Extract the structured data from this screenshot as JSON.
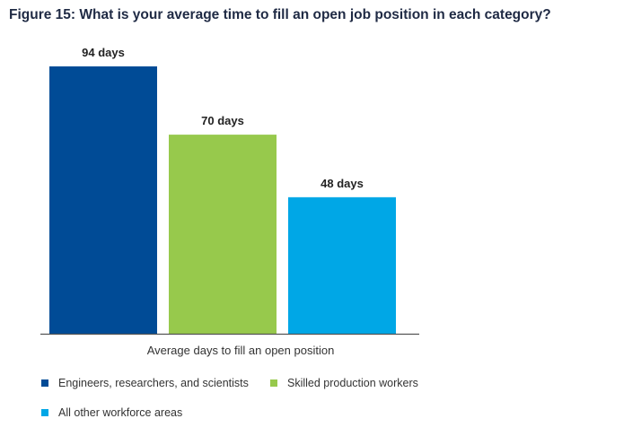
{
  "chart_data": {
    "type": "bar",
    "title": "Figure 15: What is your average time to fill an open job position in each category?",
    "xlabel": "Average days to fill an open position",
    "ylabel": "",
    "ylim": [
      0,
      100
    ],
    "categories": [
      "Engineers, researchers, and scientists",
      "Skilled production workers",
      "All other workforce areas"
    ],
    "values": [
      94,
      70,
      48
    ],
    "value_labels": [
      "94 days",
      "70 days",
      "48 days"
    ],
    "colors": [
      "#004b96",
      "#97c94c",
      "#00a7e6"
    ],
    "legend_placement": "bottom",
    "grid": false
  }
}
